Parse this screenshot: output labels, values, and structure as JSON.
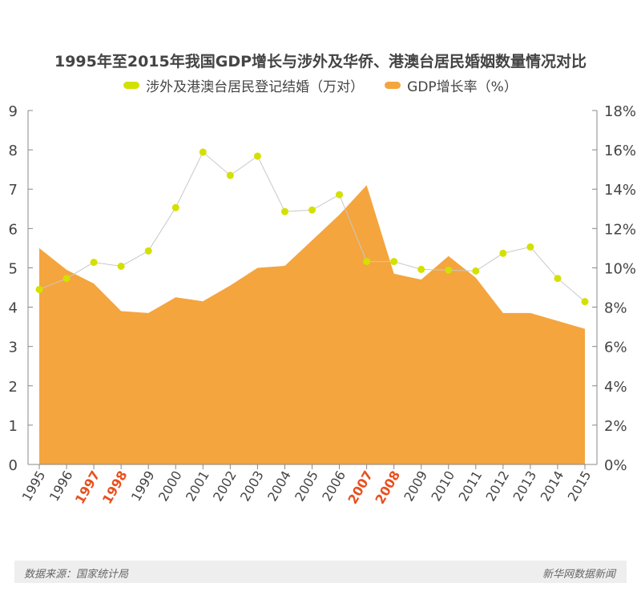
{
  "chart_data": {
    "type": "line+area",
    "title": "1995年至2015年我国GDP增长与涉外及华侨、港澳台居民婚姻数量情况对比",
    "categories": [
      "1995",
      "1996",
      "1997",
      "1998",
      "1999",
      "2000",
      "2001",
      "2002",
      "2003",
      "2004",
      "2005",
      "2006",
      "2007",
      "2008",
      "2009",
      "2010",
      "2011",
      "2012",
      "2013",
      "2014",
      "2015"
    ],
    "highlighted_categories": [
      "1997",
      "1998",
      "2007",
      "2008"
    ],
    "series": [
      {
        "name": "涉外及港澳台居民登记结婚（万对）",
        "type": "line",
        "axis": "left",
        "color": "#d4e000",
        "values": [
          4.45,
          4.73,
          5.14,
          5.04,
          5.43,
          6.53,
          7.94,
          7.35,
          7.84,
          6.43,
          6.47,
          6.86,
          5.16,
          5.16,
          4.96,
          4.94,
          4.92,
          5.37,
          5.53,
          4.73,
          4.14
        ]
      },
      {
        "name": "GDP增长率（%）",
        "type": "area",
        "axis": "right",
        "color": "#f4a53e",
        "values": [
          11.0,
          9.9,
          9.2,
          7.8,
          7.7,
          8.5,
          8.3,
          9.1,
          10.0,
          10.1,
          11.4,
          12.7,
          14.2,
          9.7,
          9.4,
          10.6,
          9.5,
          7.7,
          7.7,
          7.3,
          6.9
        ]
      }
    ],
    "yleft": {
      "ylim": [
        0,
        9
      ],
      "ticks": [
        "0",
        "1",
        "2",
        "3",
        "4",
        "5",
        "6",
        "7",
        "8",
        "9"
      ]
    },
    "yright": {
      "ylim": [
        0,
        18
      ],
      "ticks": [
        "0%",
        "2%",
        "4%",
        "6%",
        "8%",
        "10%",
        "12%",
        "14%",
        "16%",
        "18%"
      ]
    },
    "legend": "top-center",
    "grid": false
  },
  "legend": {
    "marriage": "涉外及港澳台居民登记结婚（万对）",
    "gdp": "GDP增长率（%）"
  },
  "footer": {
    "source": "数据来源：国家统计局",
    "brand": "新华网数据新闻"
  },
  "colors": {
    "highlight": "#e8501e",
    "axis": "#888888",
    "text": "#444444"
  }
}
